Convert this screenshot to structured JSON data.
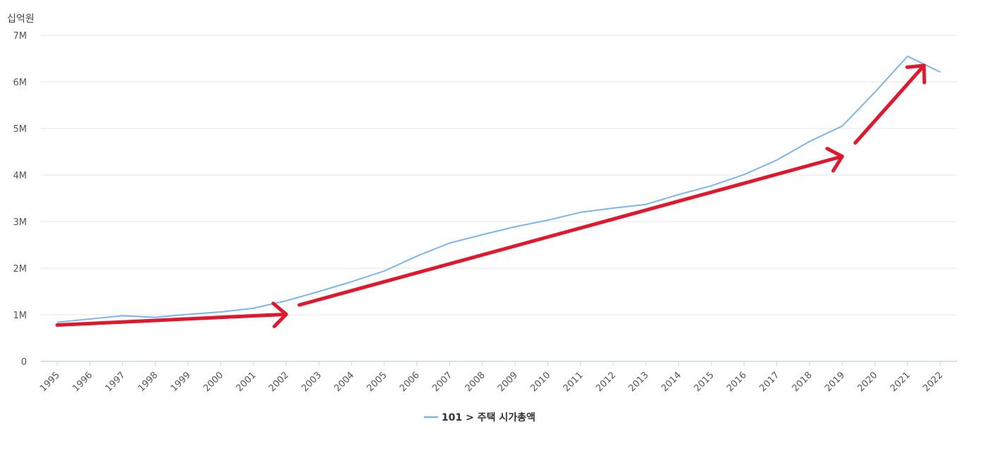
{
  "chart_data": {
    "type": "line",
    "ylabel": "십억원",
    "x": [
      "1995",
      "1996",
      "1997",
      "1998",
      "1999",
      "2000",
      "2001",
      "2002",
      "2003",
      "2004",
      "2005",
      "2006",
      "2007",
      "2008",
      "2009",
      "2010",
      "2011",
      "2012",
      "2013",
      "2014",
      "2015",
      "2016",
      "2017",
      "2018",
      "2019",
      "2020",
      "2021",
      "2022"
    ],
    "y_ticks": [
      "0",
      "1M",
      "2M",
      "3M",
      "4M",
      "5M",
      "6M",
      "7M"
    ],
    "ylim": [
      0,
      7000000
    ],
    "grid": true,
    "legend_position": "bottom-center",
    "series": [
      {
        "name": "101 > 주택 시가총액",
        "color": "#7cb5ec",
        "values": [
          840000,
          910000,
          980000,
          945000,
          1010000,
          1060000,
          1140000,
          1300000,
          1500000,
          1710000,
          1940000,
          2260000,
          2540000,
          2720000,
          2890000,
          3030000,
          3200000,
          3290000,
          3370000,
          3580000,
          3770000,
          4010000,
          4320000,
          4720000,
          5050000,
          5780000,
          6550000,
          6210000
        ]
      }
    ],
    "annotations": {
      "arrow_color": "#e0182d",
      "arrows": [
        {
          "from": {
            "x": "1995",
            "y": 780000
          },
          "to": {
            "x": "2002",
            "y": 1010000
          }
        },
        {
          "from": {
            "x": "2002.4",
            "y": 1210000
          },
          "to": {
            "x": "2019",
            "y": 4400000
          }
        },
        {
          "from": {
            "x": "2019.4",
            "y": 4690000
          },
          "to": {
            "x": "2021.5",
            "y": 6350000
          }
        }
      ]
    }
  }
}
